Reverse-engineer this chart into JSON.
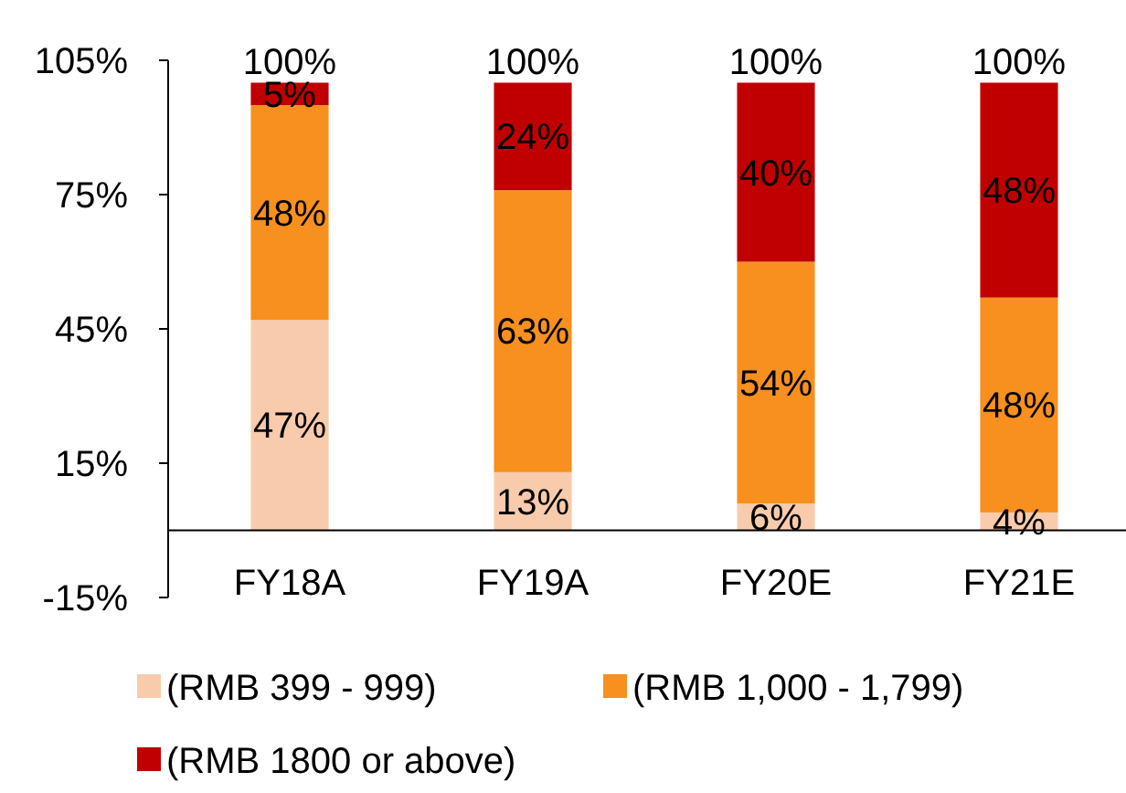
{
  "chart_data": {
    "type": "bar",
    "stacked": true,
    "categories": [
      "FY18A",
      "FY19A",
      "FY20E",
      "FY21E"
    ],
    "series": [
      {
        "name": "(RMB 399 - 999)",
        "color": "#f8cbad",
        "values": [
          47,
          13,
          6,
          4
        ],
        "value_labels": [
          "47%",
          "13%",
          "6%",
          "4%"
        ]
      },
      {
        "name": "(RMB 1,000 - 1,799)",
        "color": "#f7901e",
        "values": [
          48,
          63,
          54,
          48
        ],
        "value_labels": [
          "48%",
          "63%",
          "54%",
          "48%"
        ]
      },
      {
        "name": "(RMB 1800 or above)",
        "color": "#c00000",
        "values": [
          5,
          24,
          40,
          48
        ],
        "value_labels": [
          "5%",
          "24%",
          "40%",
          "48%"
        ]
      }
    ],
    "totals": [
      "100%",
      "100%",
      "100%",
      "100%"
    ],
    "ylim": [
      -15,
      105
    ],
    "yticks": [
      {
        "value": -15,
        "label": "-15%"
      },
      {
        "value": 15,
        "label": "15%"
      },
      {
        "value": 45,
        "label": "45%"
      },
      {
        "value": 75,
        "label": "75%"
      },
      {
        "value": 105,
        "label": "105%"
      }
    ],
    "grid": false,
    "legend": "bottom"
  }
}
